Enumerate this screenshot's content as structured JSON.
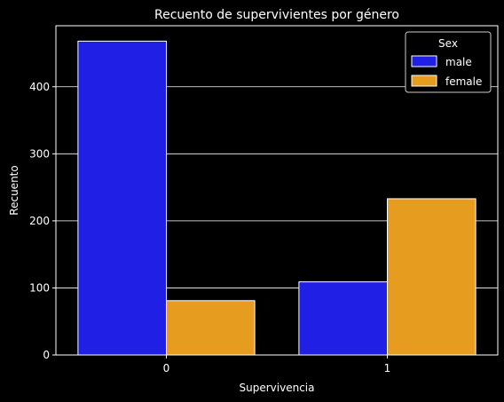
{
  "chart_data": {
    "type": "bar",
    "title": "Recuento de supervivientes por género",
    "xlabel": "Supervivencia",
    "ylabel": "Recuento",
    "categories": [
      "0",
      "1"
    ],
    "series": [
      {
        "name": "male",
        "values": [
          468,
          109
        ],
        "color": "#1f1fe6"
      },
      {
        "name": "female",
        "values": [
          81,
          233
        ],
        "color": "#e69c1f"
      }
    ],
    "ylim": [
      0,
      491
    ],
    "yticks": [
      0,
      100,
      200,
      300,
      400
    ],
    "grid": "y",
    "legend": {
      "title": "Sex",
      "position": "top-right"
    },
    "background": "#000000",
    "foreground": "#ffffff"
  }
}
